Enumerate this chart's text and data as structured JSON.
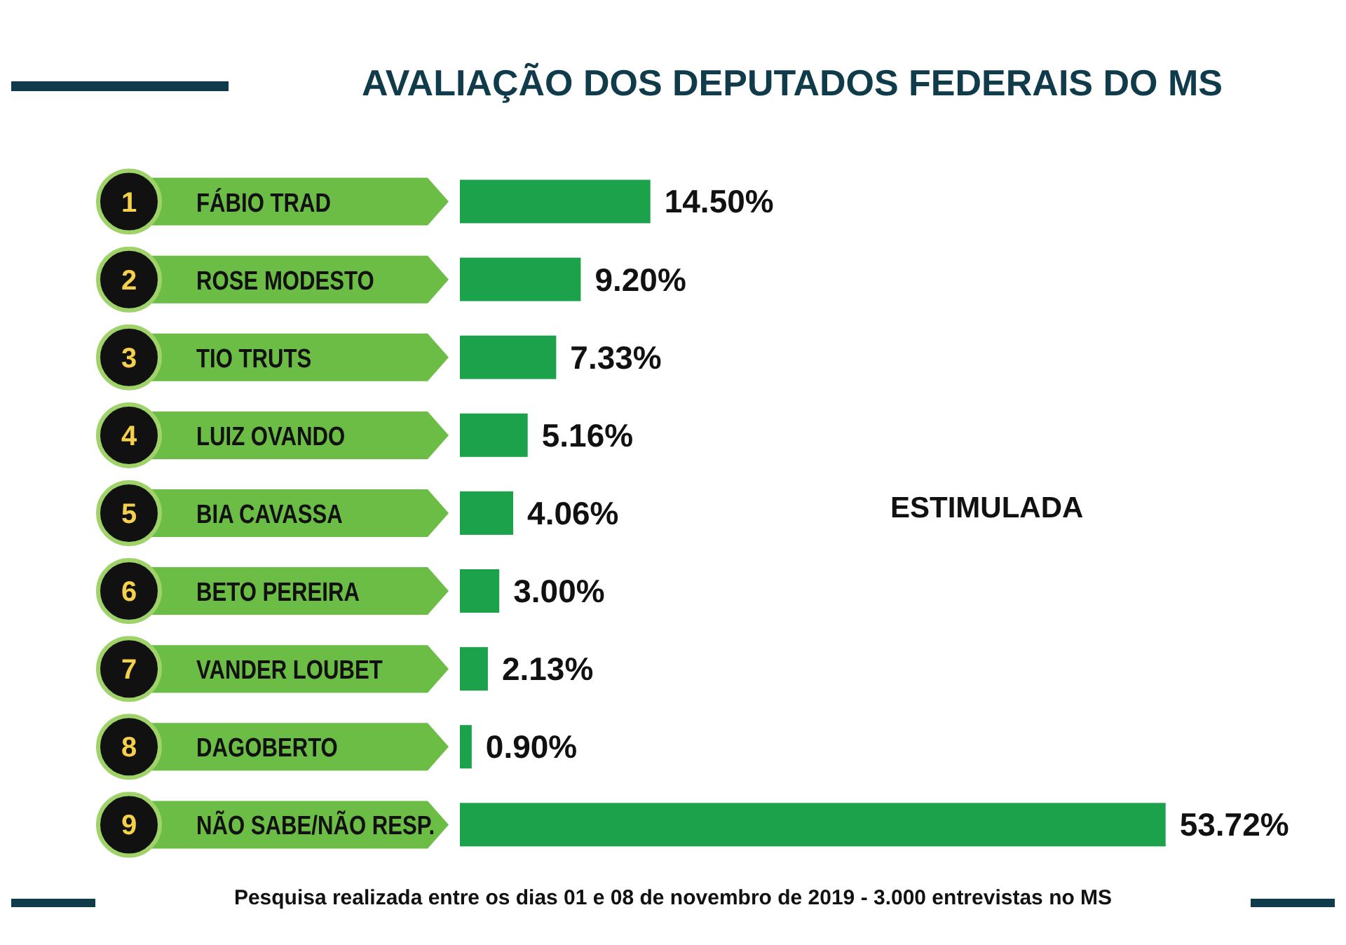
{
  "chart_data": {
    "type": "bar",
    "orientation": "horizontal",
    "title": "AVALIAÇÃO DOS DEPUTADOS FEDERAIS DO MS",
    "categories": [
      "FÁBIO TRAD",
      "ROSE MODESTO",
      "TIO TRUTS",
      "LUIZ OVANDO",
      "BIA CAVASSA",
      "BETO PEREIRA",
      "VANDER LOUBET",
      "DAGOBERTO",
      "NÃO SABE/NÃO RESP."
    ],
    "values": [
      14.5,
      9.2,
      7.33,
      5.16,
      4.06,
      3.0,
      2.13,
      0.9,
      53.72
    ],
    "value_labels": [
      "14.50%",
      "9.20%",
      "7.33%",
      "5.16%",
      "4.06%",
      "3.00%",
      "2.13%",
      "0.90%",
      "53.72%"
    ],
    "color": "#1ba24b",
    "annotations": [
      "1",
      "2",
      "3",
      "4",
      "5",
      "6",
      "7",
      "8",
      "9",
      "ESTIMULADA",
      "Pesquisa realizada entre os dias 01 e 08 de novembro de 2019 - 3.000 entrevistas no MS"
    ]
  }
}
